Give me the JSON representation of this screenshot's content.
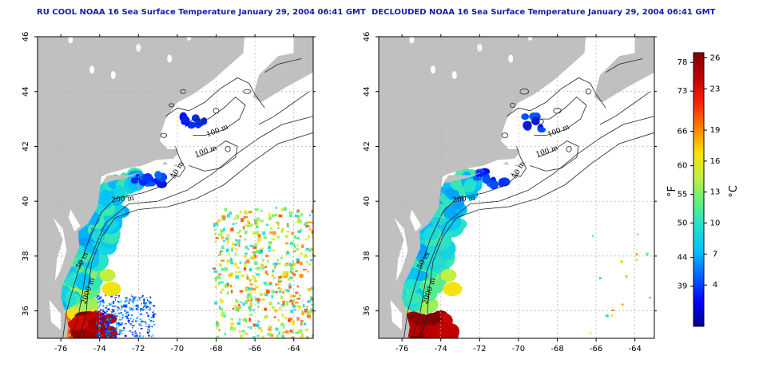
{
  "left_map": {
    "title": "RU COOL NOAA 16 Sea Surface Temperature January 29, 2004 06:41 GMT",
    "variant": "cloudy"
  },
  "right_map": {
    "title": "DECLOUDED NOAA 16 Sea Surface Temperature January 29, 2004 06:41 GMT",
    "variant": "declouded"
  },
  "axes": {
    "lon_ticks": [
      "-76",
      "-74",
      "-72",
      "-70",
      "-68",
      "-66",
      "-64"
    ],
    "lat_ticks": [
      "46",
      "44",
      "42",
      "40",
      "38",
      "36"
    ],
    "lon_range": [
      -77.2,
      -63.0
    ],
    "lat_range": [
      35.0,
      46.0
    ]
  },
  "contour_labels": [
    "100 m",
    "100 m",
    "50 m",
    "200 m",
    "50 m",
    "2000 m"
  ],
  "colorbar": {
    "fahrenheit_label": "°F",
    "celsius_label": "°C",
    "fahrenheit_ticks": [
      "78",
      "73",
      "66",
      "60",
      "55",
      "50",
      "44",
      "39"
    ],
    "celsius_ticks": [
      "26",
      "23",
      "19",
      "16",
      "13",
      "10",
      "7",
      "4"
    ],
    "celsius_range": [
      0,
      26.5
    ],
    "colors": [
      "#00008f",
      "#0000ff",
      "#0060ff",
      "#00c0ff",
      "#20e0d0",
      "#60f080",
      "#c0f040",
      "#ffe000",
      "#ff8000",
      "#ff2000",
      "#c00000",
      "#800000"
    ]
  },
  "colors": {
    "land": "#c0c0c0",
    "grid": "#b0b0b0",
    "frame": "#000000"
  }
}
